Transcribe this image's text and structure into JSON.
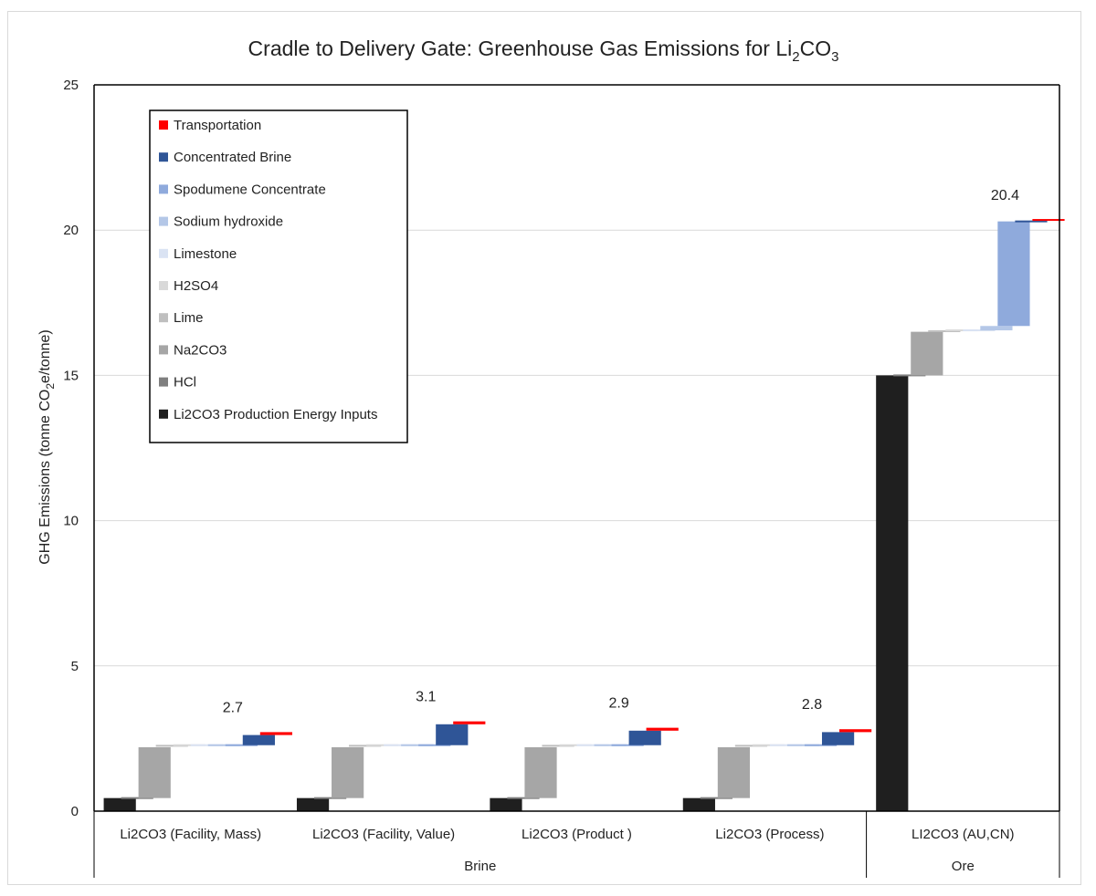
{
  "chart_data": {
    "type": "bar",
    "subtype": "waterfall",
    "title": "Cradle to Delivery Gate: Greenhouse Gas Emissions for Li2CO3",
    "title_parts": {
      "a": "Cradle to Delivery Gate: Greenhouse Gas Emissions for Li",
      "sub1": "2",
      "b": "CO",
      "sub2": "3"
    },
    "ylabel": "GHG Emissions (tonne CO2e/tonne)",
    "ylabel_parts": {
      "a": "GHG Emissions (tonne CO",
      "sub": "2",
      "b": "e/tonne)"
    },
    "ylim": [
      0,
      25
    ],
    "yticks": [
      "0",
      "5",
      "10",
      "15",
      "20",
      "25"
    ],
    "grid": true,
    "legend_position": "top-left",
    "categories": [
      "Li2CO3 (Facility, Mass)",
      "Li2CO3 (Facility, Value)",
      "Li2CO3 (Product )",
      "Li2CO3 (Process)",
      "LI2CO3 (AU,CN)"
    ],
    "groups": [
      {
        "label": "Brine",
        "categories": [
          0,
          1,
          2,
          3
        ]
      },
      {
        "label": "Ore",
        "categories": [
          4
        ]
      }
    ],
    "series": [
      {
        "name": "Li2CO3 Production Energy Inputs",
        "color": "#1f1f1f",
        "values": [
          0.45,
          0.45,
          0.45,
          0.45,
          15.0
        ]
      },
      {
        "name": "HCl",
        "color": "#7f7f7f",
        "values": [
          0.0,
          0.0,
          0.0,
          0.0,
          0.0
        ]
      },
      {
        "name": "Na2CO3",
        "color": "#a6a6a6",
        "values": [
          1.75,
          1.75,
          1.75,
          1.75,
          1.5
        ]
      },
      {
        "name": "Lime",
        "color": "#bfbfbf",
        "values": [
          0.05,
          0.05,
          0.05,
          0.05,
          0.02
        ]
      },
      {
        "name": "H2SO4",
        "color": "#d9d9d9",
        "values": [
          0.02,
          0.02,
          0.02,
          0.02,
          0.03
        ]
      },
      {
        "name": "Limestone",
        "color": "#dae3f3",
        "values": [
          0.0,
          0.0,
          0.0,
          0.0,
          0.0
        ]
      },
      {
        "name": "Sodium hydroxide",
        "color": "#b4c7e7",
        "values": [
          0.0,
          0.0,
          0.0,
          0.0,
          0.15
        ]
      },
      {
        "name": "Spodumene Concentrate",
        "color": "#8faadc",
        "values": [
          0.0,
          0.0,
          0.0,
          0.0,
          3.6
        ]
      },
      {
        "name": "Concentrated Brine",
        "color": "#2f5597",
        "values": [
          0.35,
          0.72,
          0.5,
          0.45,
          0.0
        ]
      },
      {
        "name": "Transportation",
        "color": "#ff0000",
        "values": [
          0.1,
          0.1,
          0.1,
          0.1,
          0.05
        ]
      }
    ],
    "totals": [
      "2.7",
      "3.1",
      "2.9",
      "2.8",
      "20.4"
    ],
    "legend_order": [
      "Transportation",
      "Concentrated Brine",
      "Spodumene Concentrate",
      "Sodium hydroxide",
      "Limestone",
      "H2SO4",
      "Lime",
      "Na2CO3",
      "HCl",
      "Li2CO3 Production Energy Inputs"
    ]
  }
}
